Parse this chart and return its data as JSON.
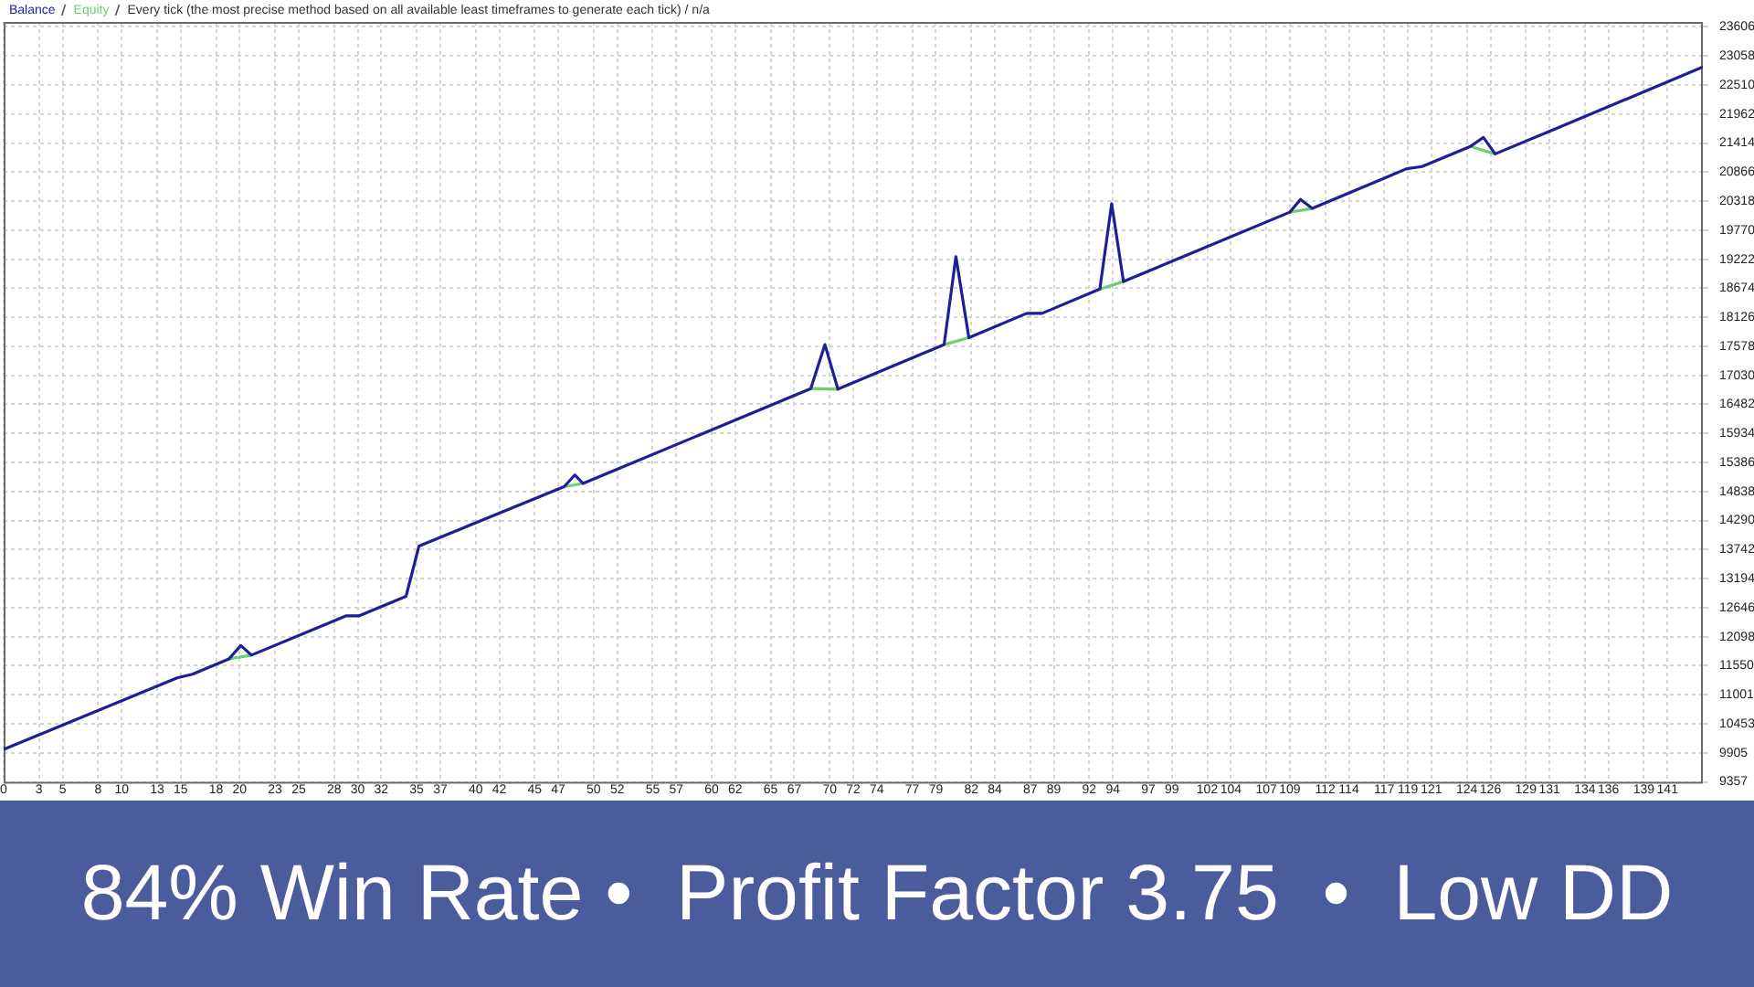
{
  "chart_data": {
    "type": "line",
    "title": "Every tick (the most precise method based on all available least timeframes to generate each tick) / n/a",
    "legend": "top left",
    "marker": "none",
    "grid": true,
    "xlim": [
      0,
      144
    ],
    "xticks": [
      0,
      3,
      5,
      8,
      10,
      13,
      15,
      18,
      20,
      23,
      25,
      28,
      30,
      32,
      35,
      37,
      40,
      42,
      45,
      47,
      50,
      52,
      55,
      57,
      60,
      62,
      65,
      67,
      70,
      72,
      74,
      77,
      79,
      82,
      84,
      87,
      89,
      92,
      94,
      97,
      99,
      102,
      104,
      107,
      109,
      112,
      114,
      117,
      119,
      121,
      124,
      126,
      129,
      131,
      134,
      136,
      139,
      141
    ],
    "ylim": [
      9357,
      23700
    ],
    "yticks": [
      9357,
      9905,
      10453,
      11001,
      11550,
      12098,
      12646,
      13194,
      13742,
      14290,
      14838,
      15386,
      15934,
      16482,
      17030,
      17578,
      18126,
      18674,
      19222,
      19770,
      20318,
      20866,
      21414,
      21962,
      22510,
      23058,
      23606
    ],
    "series": [
      {
        "name": "Balance",
        "color": "#1e1e96",
        "x": [
          0,
          14.7,
          16.0,
          19.1,
          20.1,
          21.0,
          29.0,
          30.1,
          34.1,
          35.2,
          47.5,
          48.4,
          49.1,
          68.4,
          69.6,
          70.7,
          79.7,
          80.7,
          81.8,
          86.7,
          88.0,
          92.9,
          93.9,
          94.9,
          109.0,
          109.9,
          110.9,
          118.9,
          120.2,
          124.3,
          125.4,
          126.4,
          131.6,
          144
        ],
        "values": [
          9970,
          11320,
          11390,
          11680,
          11930,
          11750,
          12490,
          12490,
          12860,
          13810,
          14930,
          15150,
          14990,
          16780,
          17610,
          16770,
          17610,
          19270,
          17740,
          18200,
          18200,
          18660,
          20270,
          18800,
          20110,
          20350,
          20180,
          20930,
          20970,
          21350,
          21520,
          21210,
          21690,
          22850
        ]
      },
      {
        "name": "Equity",
        "color": "#6fcf6f",
        "x": [
          19.1,
          21.0,
          null,
          47.5,
          49.1,
          null,
          68.4,
          70.7,
          null,
          79.7,
          81.8,
          null,
          92.9,
          94.9,
          null,
          109.0,
          110.9,
          null,
          124.3,
          126.4
        ],
        "values": [
          11680,
          11750,
          null,
          14930,
          14990,
          null,
          16780,
          16770,
          null,
          17610,
          17740,
          null,
          18660,
          18800,
          null,
          20110,
          20180,
          null,
          21350,
          21210
        ]
      }
    ],
    "annotations": [
      "84% Win Rate •  Profit Factor 3.75  •  Low DD"
    ]
  }
}
